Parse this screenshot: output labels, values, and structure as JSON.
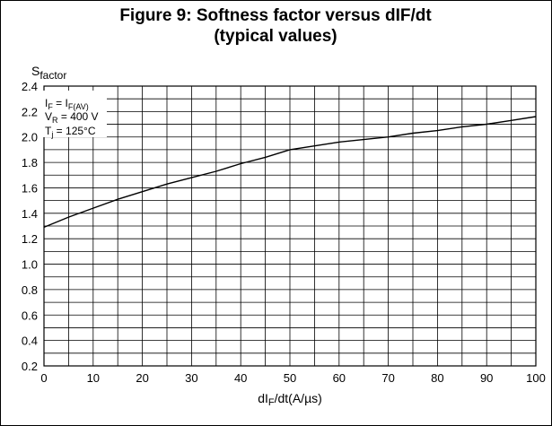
{
  "chart_data": {
    "type": "line",
    "title": "Figure 9: Softness factor versus dIF/dt",
    "subtitle": "(typical values)",
    "ylabel": {
      "main": "S",
      "sub": "factor"
    },
    "xlabel": {
      "pre": "dI",
      "sub": "F",
      "post": "/dt(A/µs)"
    },
    "xlim": [
      0,
      100
    ],
    "ylim": [
      0.2,
      2.4
    ],
    "x_ticks": [
      0,
      10,
      20,
      30,
      40,
      50,
      60,
      70,
      80,
      90,
      100
    ],
    "x_tick_labels": [
      "0",
      "10",
      "20",
      "30",
      "40",
      "50",
      "60",
      "70",
      "80",
      "90",
      "100"
    ],
    "y_ticks": [
      0.2,
      0.4,
      0.6,
      0.8,
      1.0,
      1.2,
      1.4,
      1.6,
      1.8,
      2.0,
      2.2,
      2.4
    ],
    "y_tick_labels": [
      "0.2",
      "0.4",
      "0.6",
      "0.8",
      "1.0",
      "1.2",
      "1.4",
      "1.6",
      "1.8",
      "2.0",
      "2.2",
      "2.4"
    ],
    "minor_x_step": 5,
    "minor_y_step": 0.1,
    "grid": true,
    "series": [
      {
        "x": [
          0,
          5,
          10,
          15,
          20,
          25,
          30,
          35,
          40,
          45,
          50,
          55,
          60,
          65,
          70,
          75,
          80,
          85,
          90,
          95,
          100
        ],
        "y": [
          1.29,
          1.37,
          1.44,
          1.51,
          1.57,
          1.63,
          1.68,
          1.73,
          1.79,
          1.84,
          1.9,
          1.93,
          1.96,
          1.98,
          2.0,
          2.03,
          2.05,
          2.08,
          2.1,
          2.13,
          2.16
        ]
      }
    ],
    "annotations": [
      {
        "main": "I",
        "sub": "F",
        "rest": " = I",
        "sub2": "F(AV)"
      },
      {
        "main": "V",
        "sub": "R",
        "rest": " = 400 V",
        "sub2": ""
      },
      {
        "main": "T",
        "sub": "j",
        "rest": " = 125°C",
        "sub2": ""
      }
    ],
    "annotation_position": "top-left",
    "colors": {
      "line": "#000000",
      "grid": "#000000",
      "background": "#ffffff"
    }
  }
}
